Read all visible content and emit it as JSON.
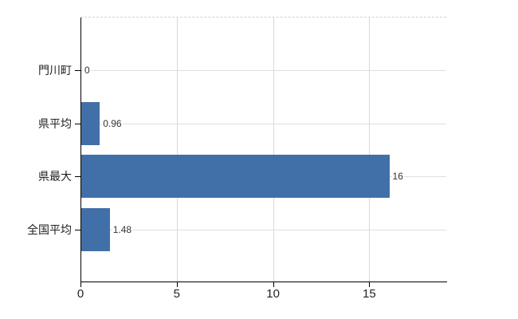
{
  "chart_data": {
    "type": "bar",
    "orientation": "horizontal",
    "title": "",
    "xlabel": "",
    "ylabel": "",
    "categories": [
      "門川町",
      "県平均",
      "県最大",
      "全国平均"
    ],
    "values": [
      0,
      0.96,
      16,
      1.48
    ],
    "value_labels": [
      "0",
      "0.96",
      "16",
      "1.48"
    ],
    "xlim": [
      0,
      19
    ],
    "xticks": [
      0,
      5,
      10,
      15
    ],
    "xtick_labels": [
      "0",
      "5",
      "10",
      "15"
    ],
    "grid": true,
    "legend": "none",
    "colors": {
      "bar": "#4170a9",
      "axis": "#000000",
      "grid": "#d9d9d9",
      "grid_row": "#dde0dc",
      "top_border": "#d3d3d3",
      "text": "#222222",
      "value_text": "#333333"
    }
  }
}
